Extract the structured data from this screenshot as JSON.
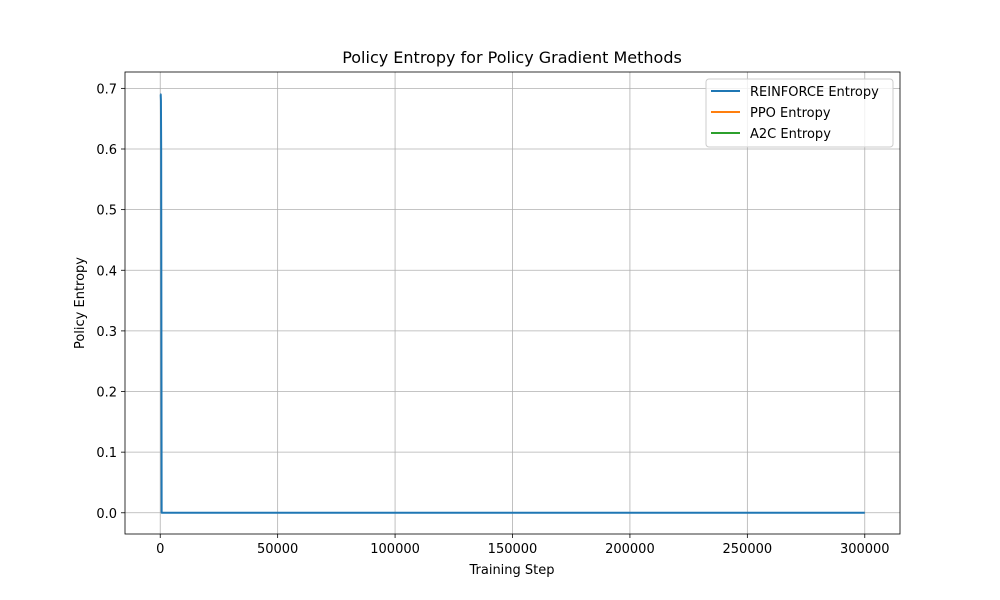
{
  "chart_data": {
    "type": "line",
    "title": "Policy Entropy for Policy Gradient Methods",
    "xlabel": "Training Step",
    "ylabel": "Policy Entropy",
    "xlim": [
      -15000,
      315000
    ],
    "ylim": [
      -0.035,
      0.727
    ],
    "xticks": [
      0,
      50000,
      100000,
      150000,
      200000,
      250000,
      300000
    ],
    "xtick_labels": [
      "0",
      "50000",
      "100000",
      "150000",
      "200000",
      "250000",
      "300000"
    ],
    "yticks": [
      0.0,
      0.1,
      0.2,
      0.3,
      0.4,
      0.5,
      0.6,
      0.7
    ],
    "ytick_labels": [
      "0.0",
      "0.1",
      "0.2",
      "0.3",
      "0.4",
      "0.5",
      "0.6",
      "0.7"
    ],
    "grid": true,
    "legend_position": "top-right",
    "series": [
      {
        "name": "REINFORCE Entropy",
        "color": "#1f77b4",
        "x": [
          0,
          100,
          200,
          300,
          400,
          500,
          600,
          300000
        ],
        "y": [
          0.69,
          0.69,
          0.69,
          0.68,
          0.6,
          0.3,
          0.0,
          0.0
        ]
      },
      {
        "name": "PPO Entropy",
        "color": "#ff7f0e",
        "x": [],
        "y": []
      },
      {
        "name": "A2C Entropy",
        "color": "#2ca02c",
        "x": [],
        "y": []
      }
    ]
  }
}
